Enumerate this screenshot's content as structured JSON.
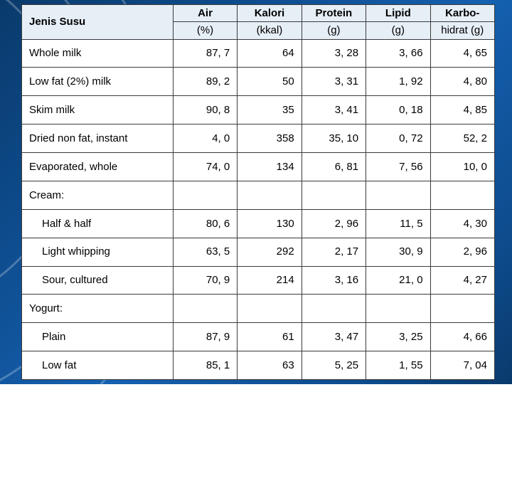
{
  "table": {
    "type": "table",
    "background_color": "#ffffff",
    "header_bg": "#e6eef6",
    "border_color": "#3a3a3a",
    "font_family": "Arial",
    "font_size_pt": 11,
    "header": {
      "row_label": "Jenis Susu",
      "cols": [
        "Air",
        "Kalori",
        "Protein",
        "Lipid",
        "Karbo-"
      ],
      "units": [
        "(%)",
        "(kkal)",
        "(g)",
        "(g)",
        "hidrat (g)"
      ]
    },
    "rows": [
      {
        "label": "Whole milk",
        "indent": false,
        "values": [
          "87, 7",
          "64",
          "3, 28",
          "3, 66",
          "4, 65"
        ]
      },
      {
        "label": "Low fat (2%) milk",
        "indent": false,
        "values": [
          "89, 2",
          "50",
          "3, 31",
          "1, 92",
          "4, 80"
        ]
      },
      {
        "label": "Skim milk",
        "indent": false,
        "values": [
          "90, 8",
          "35",
          "3, 41",
          "0, 18",
          "4, 85"
        ]
      },
      {
        "label": "Dried non fat, instant",
        "indent": false,
        "values": [
          "4, 0",
          "358",
          "35, 10",
          "0, 72",
          "52, 2"
        ]
      },
      {
        "label": "Evaporated, whole",
        "indent": false,
        "values": [
          "74, 0",
          "134",
          "6, 81",
          "7, 56",
          "10, 0"
        ]
      },
      {
        "label": "Cream:",
        "indent": false,
        "section": true
      },
      {
        "label": "Half & half",
        "indent": true,
        "values": [
          "80, 6",
          "130",
          "2, 96",
          "11, 5",
          "4, 30"
        ]
      },
      {
        "label": "Light whipping",
        "indent": true,
        "values": [
          "63, 5",
          "292",
          "2, 17",
          "30, 9",
          "2, 96"
        ]
      },
      {
        "label": "Sour, cultured",
        "indent": true,
        "values": [
          "70, 9",
          "214",
          "3, 16",
          "21, 0",
          "4, 27"
        ]
      },
      {
        "label": "Yogurt:",
        "indent": false,
        "section": true
      },
      {
        "label": "Plain",
        "indent": true,
        "values": [
          "87, 9",
          "61",
          "3, 47",
          "3, 25",
          "4, 66"
        ]
      },
      {
        "label": "Low fat",
        "indent": true,
        "values": [
          "85, 1",
          "63",
          "5, 25",
          "1, 55",
          "7, 04"
        ]
      }
    ],
    "column_widths_pct": [
      32,
      13.6,
      13.6,
      13.6,
      13.6,
      13.6
    ],
    "page_bg_gradient": [
      "#0a3a6b",
      "#1560b0",
      "#0a3a6b"
    ]
  }
}
